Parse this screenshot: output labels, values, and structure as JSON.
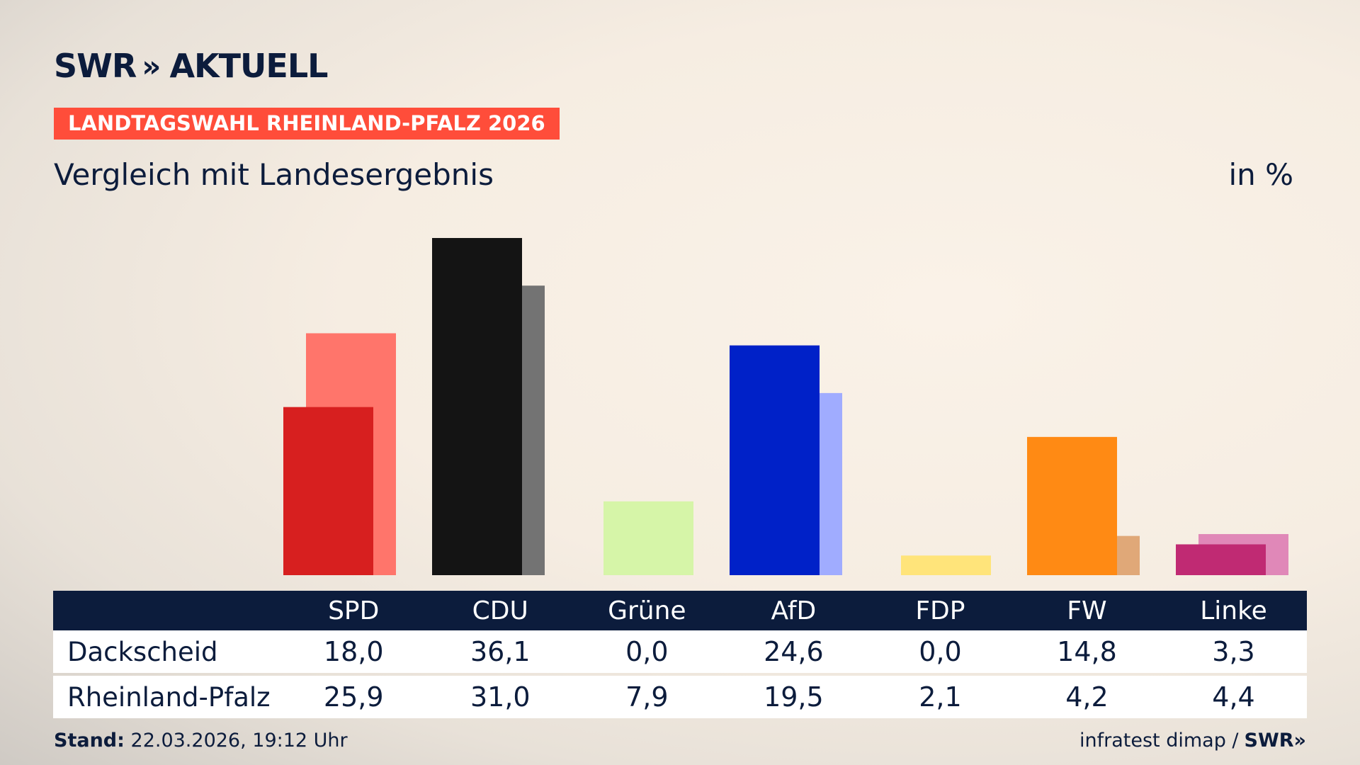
{
  "brand": {
    "swr": "SWR",
    "chevrons": "»",
    "aktuell": "AKTUELL"
  },
  "kicker": "LANDTAGSWAHL RHEINLAND-PFALZ 2026",
  "subtitle": "Vergleich mit Landesergebnis",
  "unit": "in %",
  "chart_data": {
    "type": "bar",
    "categories": [
      "SPD",
      "CDU",
      "Grüne",
      "AfD",
      "FDP",
      "FW",
      "Linke"
    ],
    "series": [
      {
        "name": "Dackscheid",
        "values": [
          18.0,
          36.1,
          0.0,
          24.6,
          0.0,
          14.8,
          3.3
        ],
        "colors": [
          "#d71f1f",
          "#141414",
          "#d6f5a8",
          "#0021c8",
          "#ffe47a",
          "#ff8a14",
          "#c02a73"
        ]
      },
      {
        "name": "Rheinland-Pfalz",
        "values": [
          25.9,
          31.0,
          7.9,
          19.5,
          2.1,
          4.2,
          4.4
        ],
        "colors": [
          "#ff756b",
          "#737373",
          "#d6f5a8",
          "#a0acff",
          "#ffe47a",
          "#e0a878",
          "#e088b8"
        ]
      }
    ],
    "ylim": [
      0,
      36.1
    ]
  },
  "table": {
    "headers": [
      "SPD",
      "CDU",
      "Grüne",
      "AfD",
      "FDP",
      "FW",
      "Linke"
    ],
    "rows": [
      {
        "label": "Dackscheid",
        "values": [
          "18,0",
          "36,1",
          "0,0",
          "24,6",
          "0,0",
          "14,8",
          "3,3"
        ]
      },
      {
        "label": "Rheinland-Pfalz",
        "values": [
          "25,9",
          "31,0",
          "7,9",
          "19,5",
          "2,1",
          "4,2",
          "4,4"
        ]
      }
    ]
  },
  "footer": {
    "stand_label": "Stand:",
    "stand_value": "22.03.2026, 19:12 Uhr",
    "source": "infratest dimap /",
    "source_brand": "SWR»"
  }
}
